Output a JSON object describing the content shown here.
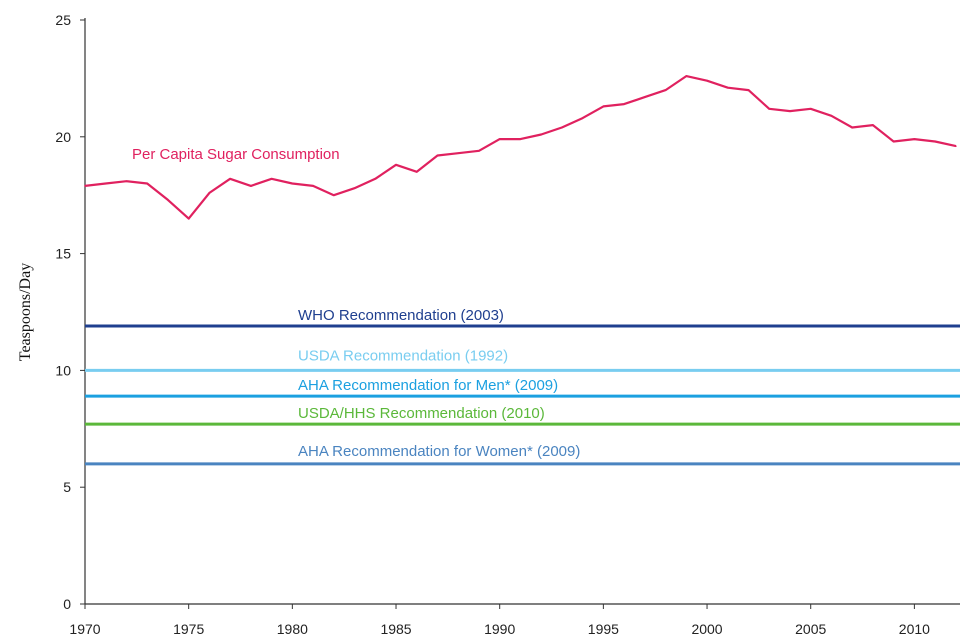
{
  "chart_data": {
    "type": "line",
    "title": "",
    "xlabel": "",
    "ylabel": "Teaspoons/Day",
    "xlim": [
      1970,
      2012.2
    ],
    "ylim": [
      0,
      25
    ],
    "x_ticks": [
      1970,
      1975,
      1980,
      1985,
      1990,
      1995,
      2000,
      2005,
      2010
    ],
    "y_ticks": [
      0,
      5,
      10,
      15,
      20,
      25
    ],
    "grid": false,
    "series": [
      {
        "name": "Per Capita Sugar Consumption",
        "color": "#e0215f",
        "x": [
          1970,
          1971,
          1972,
          1973,
          1974,
          1975,
          1976,
          1977,
          1978,
          1979,
          1980,
          1981,
          1982,
          1983,
          1984,
          1985,
          1986,
          1987,
          1988,
          1989,
          1990,
          1991,
          1992,
          1993,
          1994,
          1995,
          1996,
          1997,
          1998,
          1999,
          2000,
          2001,
          2002,
          2003,
          2004,
          2005,
          2006,
          2007,
          2008,
          2009,
          2010,
          2011,
          2012
        ],
        "values": [
          17.9,
          18.0,
          18.1,
          18.0,
          17.3,
          16.5,
          17.6,
          18.2,
          17.9,
          18.2,
          18.0,
          17.9,
          17.5,
          17.8,
          18.2,
          18.8,
          18.5,
          19.2,
          19.3,
          19.4,
          19.9,
          19.9,
          20.1,
          20.4,
          20.8,
          21.3,
          21.4,
          21.7,
          22.0,
          22.6,
          22.4,
          22.1,
          22.0,
          21.2,
          21.1,
          21.2,
          20.9,
          20.4,
          20.5,
          19.8,
          19.9,
          19.8,
          19.6
        ]
      }
    ],
    "reference_lines": [
      {
        "name": "WHO Recommendation (2003)",
        "value": 11.9,
        "color": "#1f3f8f"
      },
      {
        "name": "USDA Recommendation (1992)",
        "value": 10.0,
        "color": "#79cdf0"
      },
      {
        "name": "AHA Recommendation for Men* (2009)",
        "value": 8.9,
        "color": "#1ba0e0"
      },
      {
        "name": "USDA/HHS Recommendation (2010)",
        "value": 7.7,
        "color": "#5bb83a"
      },
      {
        "name": "AHA Recommendation for Women* (2009)",
        "value": 6.0,
        "color": "#4a84c0"
      }
    ]
  }
}
